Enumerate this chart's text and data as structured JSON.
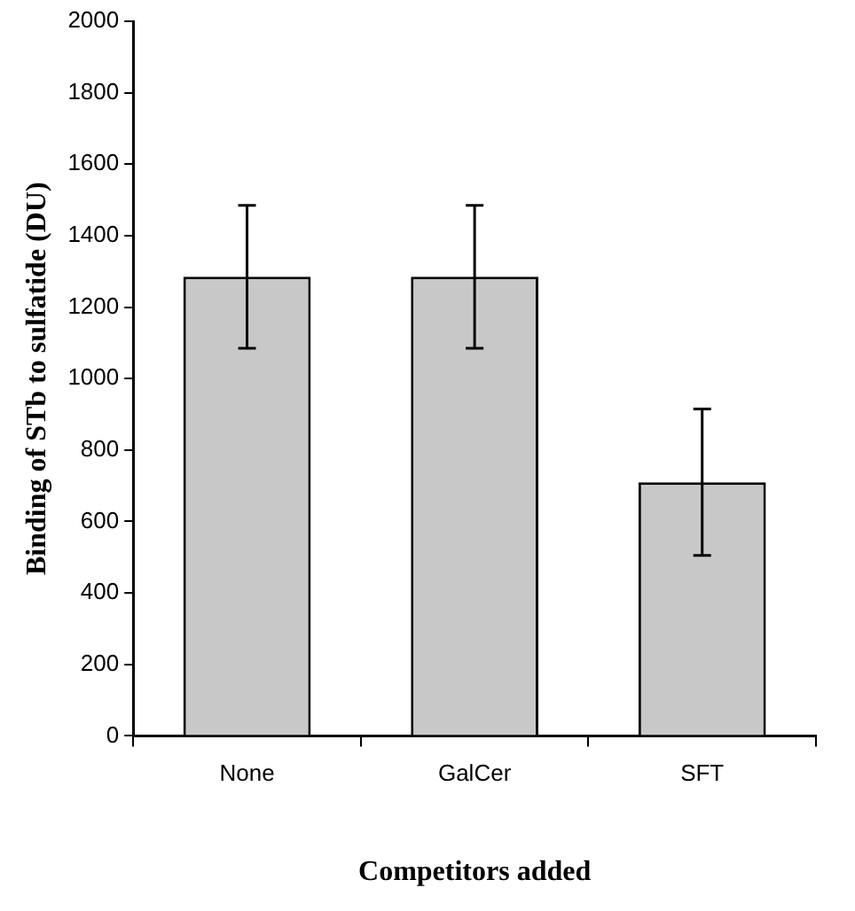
{
  "chart_data": {
    "type": "bar",
    "xlabel": "Competitors added",
    "ylabel": "Binding of STb to sulfatide (DU)",
    "categories": [
      "None",
      "GalCer",
      "SFT"
    ],
    "values": [
      1285,
      1285,
      710
    ],
    "errors": [
      200,
      200,
      205
    ],
    "color": "#c8c8c8",
    "ylim": [
      0,
      2000
    ],
    "yticks": [
      0,
      200,
      400,
      600,
      800,
      1000,
      1200,
      1400,
      1600,
      1800,
      2000
    ],
    "grid": false,
    "legend": false
  }
}
